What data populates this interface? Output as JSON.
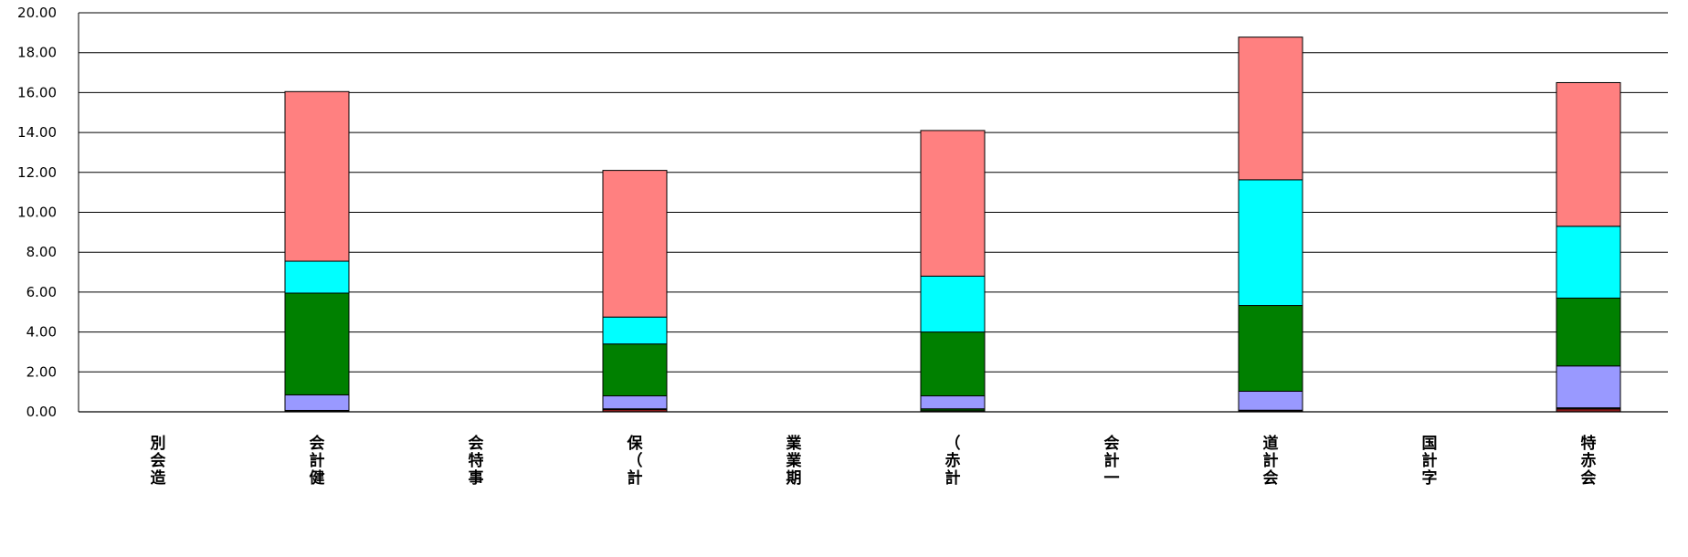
{
  "chart_data": {
    "type": "bar",
    "stacked": true,
    "title": "",
    "xlabel": "",
    "ylabel": "",
    "ylim": [
      0,
      20
    ],
    "yticks": [
      "0.00",
      "2.00",
      "4.00",
      "6.00",
      "8.00",
      "10.00",
      "12.00",
      "14.00",
      "16.00",
      "18.00",
      "20.00"
    ],
    "grid": true,
    "legend": "none",
    "categories": [
      [
        "別",
        "会",
        "造"
      ],
      [
        "会",
        "計",
        "健"
      ],
      [
        "会",
        "特",
        "事"
      ],
      [
        "保",
        "（",
        "計"
      ],
      [
        "業",
        "業",
        "期"
      ],
      [
        "（",
        "赤",
        "計"
      ],
      [
        "会",
        "計",
        "一"
      ],
      [
        "道",
        "計",
        "会"
      ],
      [
        "国",
        "計",
        "字"
      ],
      [
        "特",
        "赤",
        "会"
      ]
    ],
    "series": [
      {
        "color": "#8b1a1a",
        "values": [
          0,
          0.05,
          0,
          0.12,
          0,
          0.05,
          0,
          0.05,
          0,
          0.15
        ]
      },
      {
        "color": "#006400",
        "values": [
          0,
          0.02,
          0,
          0.03,
          0,
          0.1,
          0,
          0.03,
          0,
          0.05
        ]
      },
      {
        "color": "#9999ff",
        "values": [
          0,
          0.78,
          0,
          0.65,
          0,
          0.65,
          0,
          0.95,
          0,
          2.1
        ]
      },
      {
        "color": "#008000",
        "values": [
          0,
          5.1,
          0,
          2.6,
          0,
          3.2,
          0,
          4.3,
          0,
          3.4
        ]
      },
      {
        "color": "#00ffff",
        "values": [
          0,
          1.6,
          0,
          1.35,
          0,
          2.8,
          0,
          6.3,
          0,
          3.6
        ]
      },
      {
        "color": "#ff8080",
        "values": [
          0,
          8.5,
          0,
          7.35,
          0,
          7.3,
          0,
          7.15,
          0,
          7.2
        ]
      }
    ]
  }
}
